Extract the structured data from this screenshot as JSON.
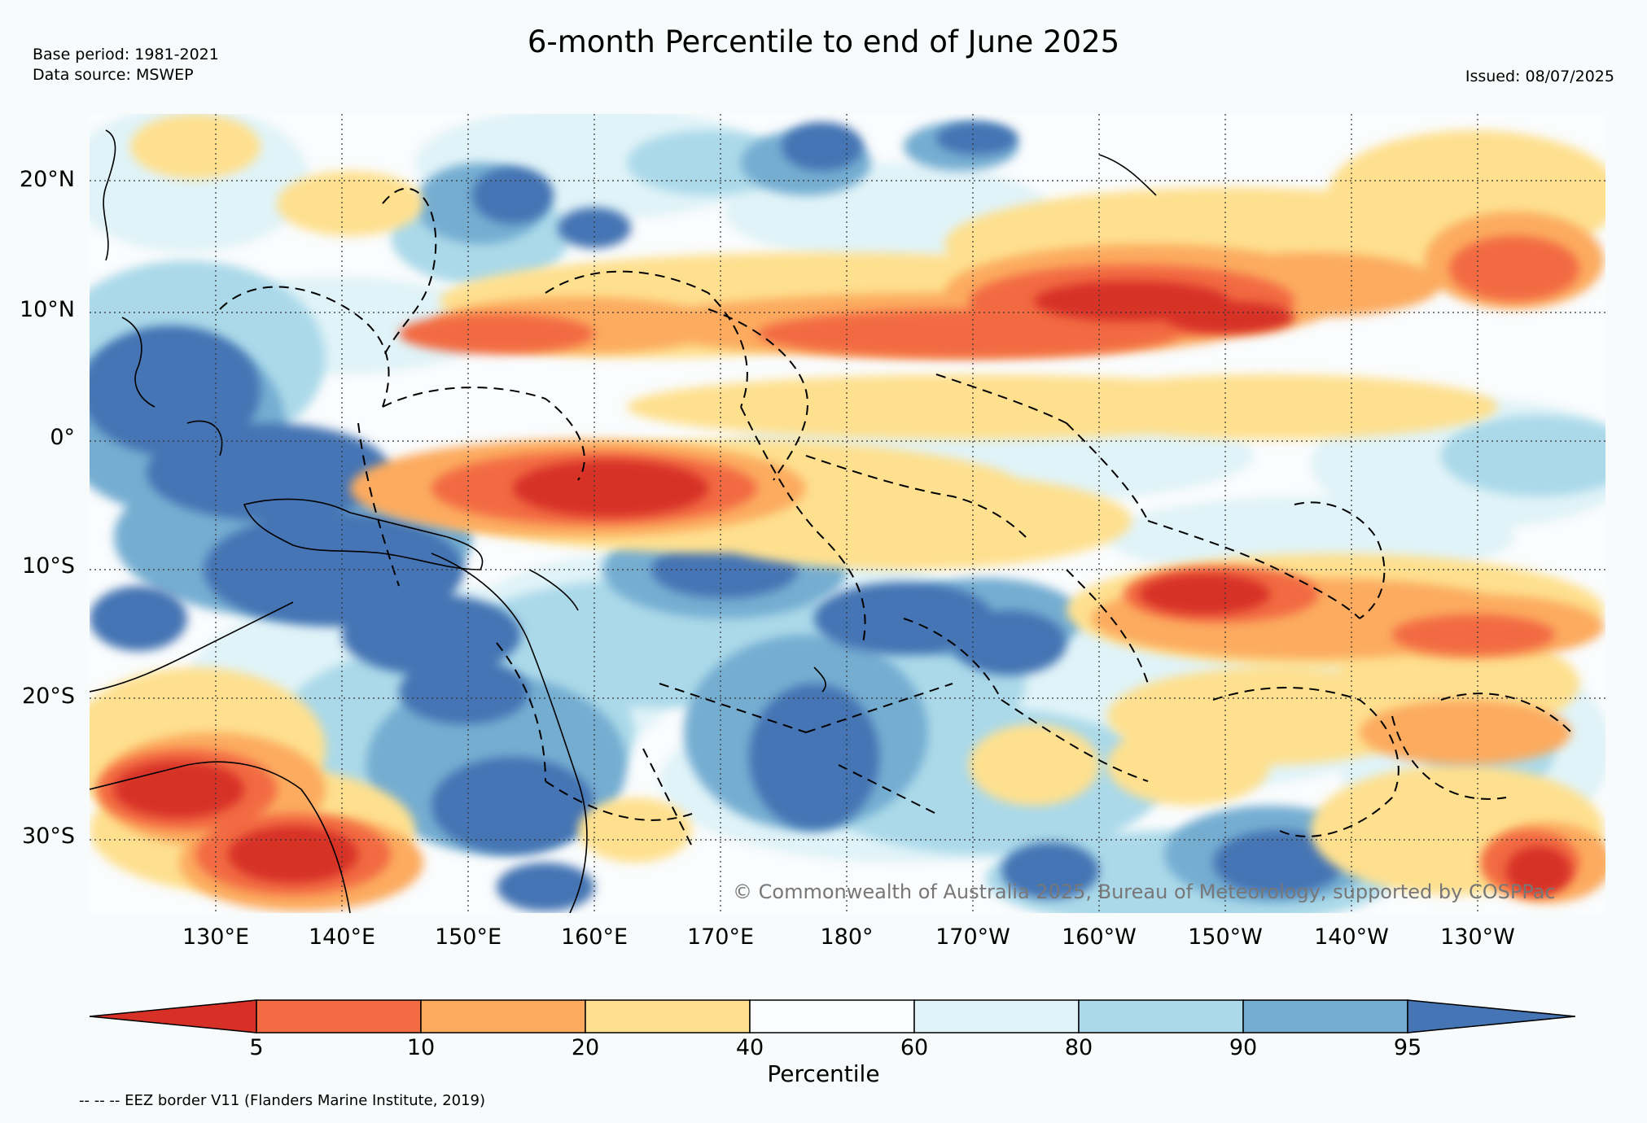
{
  "title": "6-month Percentile to end of June 2025",
  "meta": {
    "base_period": "Base period: 1981-2021",
    "data_source": "Data source: MSWEP",
    "issued": "Issued: 08/07/2025"
  },
  "map": {
    "lon_range": [
      120,
      240
    ],
    "lat_range": [
      -36,
      25
    ],
    "lat_labels": [
      "20°N",
      "10°N",
      "0°",
      "10°S",
      "20°S",
      "30°S"
    ],
    "lon_labels": [
      "130°E",
      "140°E",
      "150°E",
      "160°E",
      "170°E",
      "180°",
      "170°W",
      "160°W",
      "150°W",
      "140°W",
      "130°W"
    ],
    "copyright": "© Commonwealth of Australia 2025, Bureau of Meteorology, supported by COSPPac",
    "colors": {
      "below_5": "#d73027",
      "5_10": "#f26b43",
      "10_20": "#fcab5e",
      "20_40": "#fee08f",
      "40_60": "#fafcfd",
      "60_80": "#e0f3f8",
      "80_90": "#abd9e9",
      "90_95": "#74add1",
      "above_95": "#4575b4"
    }
  },
  "colorbar": {
    "title": "Percentile",
    "ticks": [
      "5",
      "10",
      "20",
      "40",
      "60",
      "80",
      "90",
      "95"
    ],
    "colors": [
      "#d73027",
      "#f26b43",
      "#fcab5e",
      "#fee08f",
      "#fafcfd",
      "#e0f3f8",
      "#abd9e9",
      "#74add1",
      "#4575b4"
    ]
  },
  "footer": {
    "eez": "-- -- -- EEZ border V11 (Flanders Marine Institute, 2019)"
  }
}
